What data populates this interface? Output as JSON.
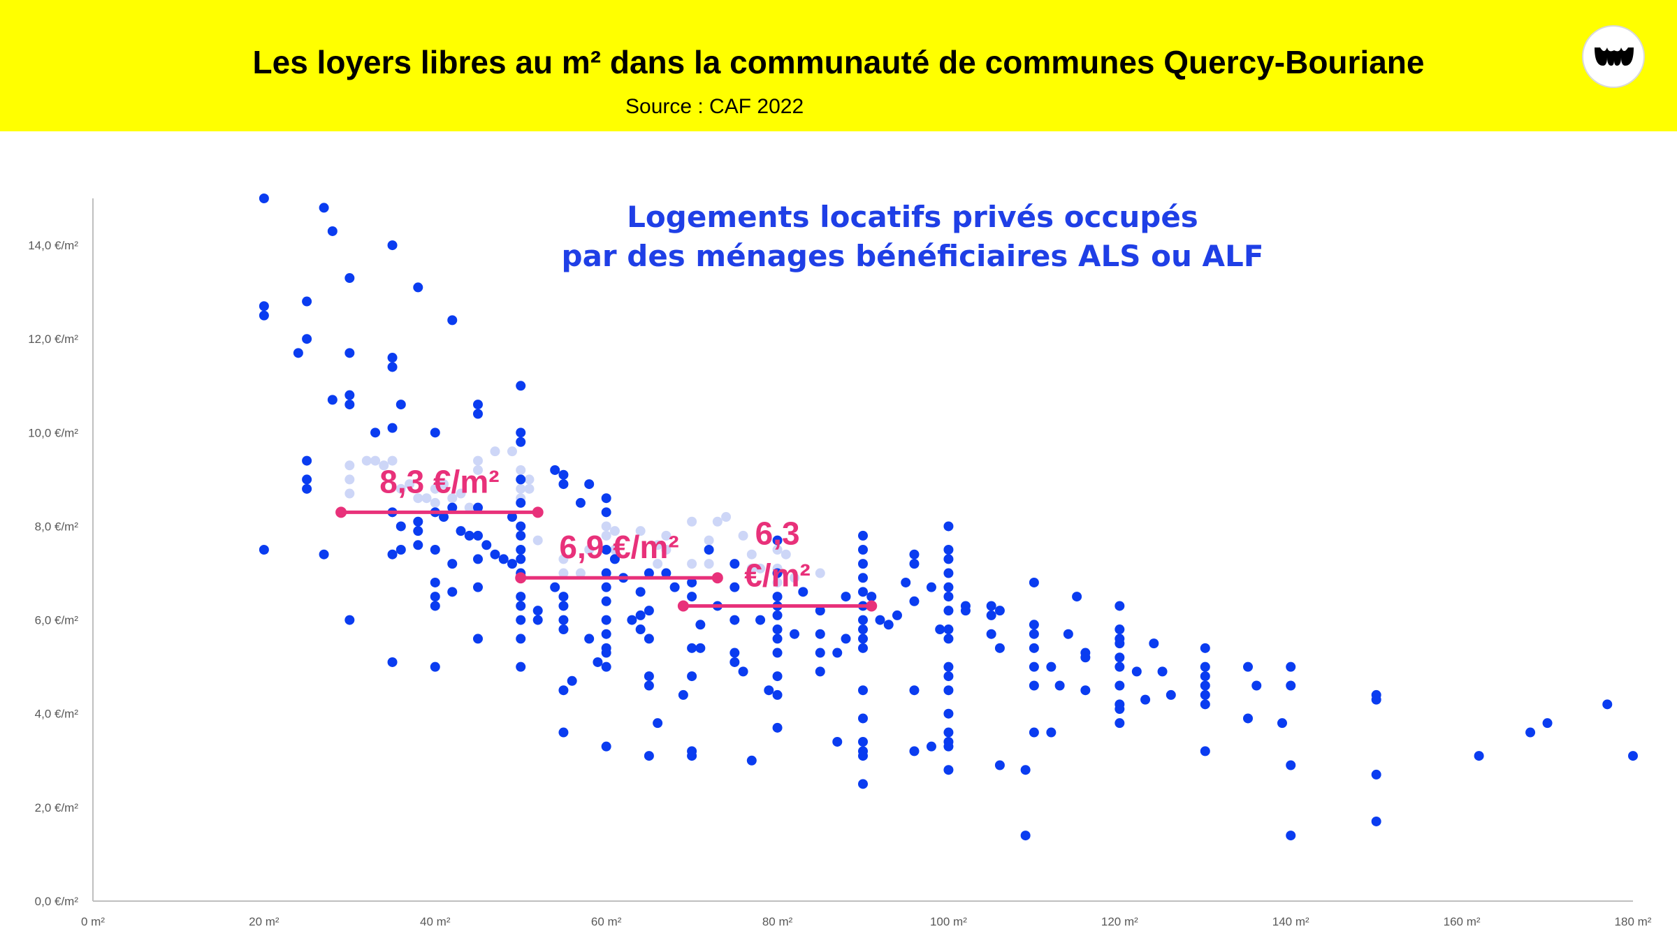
{
  "header": {
    "title": "Les loyers libres au m² dans la communauté de communes Quercy-Bouriane",
    "source": "Source : CAF 2022",
    "logo": "brand-logo-icon"
  },
  "colors": {
    "header_bg": "#ffff00",
    "points": "#0a3cf0",
    "faded_points": "#cdd6f7",
    "subtitle": "#1f3fe6",
    "annotation": "#e8317a"
  },
  "chart_data": {
    "type": "scatter",
    "subtitle_lines": [
      "Logements locatifs privés occupés",
      "par des ménages bénéficiaires ALS ou ALF"
    ],
    "xlim": [
      0,
      180
    ],
    "ylim": [
      0,
      15
    ],
    "x_ticks": [
      0,
      20,
      40,
      60,
      80,
      100,
      120,
      140,
      160,
      180
    ],
    "x_tick_labels": [
      "0 m²",
      "20 m²",
      "40 m²",
      "60 m²",
      "80 m²",
      "100 m²",
      "120 m²",
      "140 m²",
      "160 m²",
      "180 m²"
    ],
    "y_ticks": [
      0,
      2,
      4,
      6,
      8,
      10,
      12,
      14
    ],
    "y_tick_labels": [
      "0,0 €/m²",
      "2,0 €/m²",
      "4,0 €/m²",
      "6,0 €/m²",
      "8,0 €/m²",
      "10,0 €/m²",
      "12,0 €/m²",
      "14,0 €/m²"
    ],
    "grid": false,
    "points": [
      [
        20,
        15
      ],
      [
        20,
        12.7
      ],
      [
        20,
        12.5
      ],
      [
        20,
        7.5
      ],
      [
        24,
        11.7
      ],
      [
        25,
        12.8
      ],
      [
        25,
        12
      ],
      [
        25,
        9.4
      ],
      [
        25,
        9
      ],
      [
        25,
        8.8
      ],
      [
        27,
        14.8
      ],
      [
        27,
        7.4
      ],
      [
        28,
        14.3
      ],
      [
        28,
        10.7
      ],
      [
        30,
        13.3
      ],
      [
        30,
        11.7
      ],
      [
        30,
        10.8
      ],
      [
        30,
        10.6
      ],
      [
        30,
        6
      ],
      [
        33,
        10
      ],
      [
        35,
        14
      ],
      [
        35,
        11.6
      ],
      [
        35,
        11.4
      ],
      [
        35,
        10.1
      ],
      [
        35,
        8.3
      ],
      [
        35,
        7.4
      ],
      [
        35,
        5.1
      ],
      [
        36,
        10.6
      ],
      [
        36,
        8
      ],
      [
        36,
        7.5
      ],
      [
        38,
        13.1
      ],
      [
        38,
        8.1
      ],
      [
        38,
        7.9
      ],
      [
        38,
        7.6
      ],
      [
        40,
        10
      ],
      [
        40,
        8.3
      ],
      [
        40,
        7.5
      ],
      [
        40,
        6.8
      ],
      [
        40,
        6.5
      ],
      [
        40,
        6.3
      ],
      [
        40,
        5
      ],
      [
        41,
        8.2
      ],
      [
        42,
        12.4
      ],
      [
        42,
        8.4
      ],
      [
        42,
        6.6
      ],
      [
        42,
        7.2
      ],
      [
        43,
        7.9
      ],
      [
        44,
        7.8
      ],
      [
        45,
        10.6
      ],
      [
        45,
        10.4
      ],
      [
        45,
        8.4
      ],
      [
        45,
        7.8
      ],
      [
        45,
        7.3
      ],
      [
        45,
        6.7
      ],
      [
        45,
        5.6
      ],
      [
        46,
        7.6
      ],
      [
        47,
        7.4
      ],
      [
        48,
        7.3
      ],
      [
        49,
        7.2
      ],
      [
        49,
        8.2
      ],
      [
        50,
        11
      ],
      [
        50,
        10
      ],
      [
        50,
        9.8
      ],
      [
        50,
        9
      ],
      [
        50,
        8.5
      ],
      [
        50,
        8
      ],
      [
        50,
        7.8
      ],
      [
        50,
        7.5
      ],
      [
        50,
        7.3
      ],
      [
        50,
        7
      ],
      [
        50,
        6.5
      ],
      [
        50,
        6.3
      ],
      [
        50,
        6
      ],
      [
        50,
        5.6
      ],
      [
        50,
        5
      ],
      [
        52,
        6.2
      ],
      [
        52,
        6
      ],
      [
        54,
        9.2
      ],
      [
        54,
        6.7
      ],
      [
        55,
        9.1
      ],
      [
        55,
        8.9
      ],
      [
        55,
        6.5
      ],
      [
        55,
        6.3
      ],
      [
        55,
        6
      ],
      [
        55,
        5.8
      ],
      [
        55,
        4.5
      ],
      [
        55,
        3.6
      ],
      [
        56,
        4.7
      ],
      [
        57,
        8.5
      ],
      [
        58,
        8.9
      ],
      [
        58,
        5.6
      ],
      [
        59,
        5.1
      ],
      [
        60,
        8.6
      ],
      [
        60,
        8.3
      ],
      [
        60,
        7.5
      ],
      [
        60,
        7
      ],
      [
        60,
        6.7
      ],
      [
        60,
        6.4
      ],
      [
        60,
        6
      ],
      [
        60,
        5.7
      ],
      [
        60,
        5.4
      ],
      [
        60,
        5.3
      ],
      [
        60,
        5
      ],
      [
        60,
        3.3
      ],
      [
        61,
        7.3
      ],
      [
        62,
        6.9
      ],
      [
        63,
        6
      ],
      [
        64,
        6.6
      ],
      [
        64,
        5.8
      ],
      [
        64,
        6.1
      ],
      [
        65,
        7
      ],
      [
        65,
        6.2
      ],
      [
        65,
        5.6
      ],
      [
        65,
        4.8
      ],
      [
        65,
        4.6
      ],
      [
        65,
        3.1
      ],
      [
        66,
        3.8
      ],
      [
        67,
        7
      ],
      [
        68,
        6.7
      ],
      [
        69,
        4.4
      ],
      [
        70,
        6.8
      ],
      [
        70,
        6.5
      ],
      [
        70,
        5.4
      ],
      [
        70,
        4.8
      ],
      [
        70,
        3.2
      ],
      [
        70,
        3.1
      ],
      [
        71,
        5.9
      ],
      [
        71,
        5.4
      ],
      [
        72,
        7.5
      ],
      [
        73,
        6.3
      ],
      [
        75,
        7.2
      ],
      [
        75,
        6.7
      ],
      [
        75,
        6
      ],
      [
        75,
        5.3
      ],
      [
        75,
        5.1
      ],
      [
        76,
        4.9
      ],
      [
        77,
        3
      ],
      [
        78,
        6
      ],
      [
        79,
        4.5
      ],
      [
        80,
        7.7
      ],
      [
        80,
        7
      ],
      [
        80,
        6.5
      ],
      [
        80,
        6.3
      ],
      [
        80,
        6.1
      ],
      [
        80,
        5.8
      ],
      [
        80,
        5.6
      ],
      [
        80,
        5.3
      ],
      [
        80,
        4.8
      ],
      [
        80,
        4.4
      ],
      [
        80,
        3.7
      ],
      [
        82,
        5.7
      ],
      [
        83,
        6.6
      ],
      [
        85,
        6.2
      ],
      [
        85,
        5.7
      ],
      [
        85,
        5.3
      ],
      [
        85,
        4.9
      ],
      [
        87,
        5.3
      ],
      [
        87,
        3.4
      ],
      [
        88,
        5.6
      ],
      [
        88,
        6.5
      ],
      [
        90,
        7.8
      ],
      [
        90,
        7.5
      ],
      [
        90,
        7.2
      ],
      [
        90,
        6.9
      ],
      [
        90,
        6.6
      ],
      [
        90,
        6.3
      ],
      [
        90,
        6
      ],
      [
        90,
        5.8
      ],
      [
        90,
        5.6
      ],
      [
        90,
        5.4
      ],
      [
        90,
        4.5
      ],
      [
        90,
        3.9
      ],
      [
        90,
        3.4
      ],
      [
        90,
        3.2
      ],
      [
        90,
        3.1
      ],
      [
        90,
        2.5
      ],
      [
        91,
        6.5
      ],
      [
        92,
        6
      ],
      [
        93,
        5.9
      ],
      [
        94,
        6.1
      ],
      [
        95,
        6.8
      ],
      [
        96,
        7.4
      ],
      [
        96,
        7.2
      ],
      [
        96,
        6.4
      ],
      [
        96,
        4.5
      ],
      [
        96,
        3.2
      ],
      [
        98,
        6.7
      ],
      [
        98,
        3.3
      ],
      [
        99,
        5.8
      ],
      [
        100,
        8
      ],
      [
        100,
        7.5
      ],
      [
        100,
        7.3
      ],
      [
        100,
        7
      ],
      [
        100,
        6.7
      ],
      [
        100,
        6.5
      ],
      [
        100,
        6.2
      ],
      [
        100,
        5.8
      ],
      [
        100,
        5.6
      ],
      [
        100,
        5
      ],
      [
        100,
        4.8
      ],
      [
        100,
        4.5
      ],
      [
        100,
        4
      ],
      [
        100,
        3.6
      ],
      [
        100,
        3.4
      ],
      [
        100,
        3.3
      ],
      [
        100,
        2.8
      ],
      [
        102,
        6.3
      ],
      [
        102,
        6.2
      ],
      [
        105,
        6.3
      ],
      [
        105,
        6.1
      ],
      [
        105,
        5.7
      ],
      [
        106,
        6.2
      ],
      [
        106,
        5.4
      ],
      [
        106,
        2.9
      ],
      [
        109,
        2.8
      ],
      [
        109,
        1.4
      ],
      [
        110,
        6.8
      ],
      [
        110,
        5.9
      ],
      [
        110,
        5.7
      ],
      [
        110,
        5.4
      ],
      [
        110,
        5
      ],
      [
        110,
        4.6
      ],
      [
        110,
        3.6
      ],
      [
        112,
        5
      ],
      [
        112,
        3.6
      ],
      [
        113,
        4.6
      ],
      [
        114,
        5.7
      ],
      [
        115,
        6.5
      ],
      [
        116,
        5.3
      ],
      [
        116,
        5.2
      ],
      [
        116,
        4.5
      ],
      [
        120,
        6.3
      ],
      [
        120,
        5.8
      ],
      [
        120,
        5.6
      ],
      [
        120,
        5.5
      ],
      [
        120,
        5.2
      ],
      [
        120,
        5
      ],
      [
        120,
        4.6
      ],
      [
        120,
        4.2
      ],
      [
        120,
        4.1
      ],
      [
        120,
        3.8
      ],
      [
        122,
        4.9
      ],
      [
        123,
        4.3
      ],
      [
        124,
        5.5
      ],
      [
        125,
        4.9
      ],
      [
        126,
        4.4
      ],
      [
        130,
        5.4
      ],
      [
        130,
        5
      ],
      [
        130,
        4.8
      ],
      [
        130,
        4.6
      ],
      [
        130,
        4.4
      ],
      [
        130,
        4.2
      ],
      [
        130,
        3.2
      ],
      [
        135,
        5
      ],
      [
        135,
        3.9
      ],
      [
        136,
        4.6
      ],
      [
        139,
        3.8
      ],
      [
        140,
        5
      ],
      [
        140,
        4.6
      ],
      [
        140,
        2.9
      ],
      [
        140,
        1.4
      ],
      [
        150,
        4.4
      ],
      [
        150,
        4.3
      ],
      [
        150,
        2.7
      ],
      [
        150,
        1.7
      ],
      [
        162,
        3.1
      ],
      [
        168,
        3.6
      ],
      [
        170,
        3.8
      ],
      [
        177,
        4.2
      ],
      [
        180,
        3.1
      ]
    ],
    "faded_points": [
      [
        30,
        9.3
      ],
      [
        30,
        9
      ],
      [
        30,
        8.7
      ],
      [
        32,
        9.4
      ],
      [
        33,
        9.4
      ],
      [
        34,
        9.3
      ],
      [
        35,
        9.4
      ],
      [
        36,
        8.8
      ],
      [
        37,
        8.9
      ],
      [
        38,
        8.6
      ],
      [
        39,
        8.6
      ],
      [
        40,
        8.5
      ],
      [
        40,
        8.8
      ],
      [
        41,
        8.9
      ],
      [
        42,
        8.6
      ],
      [
        43,
        8.7
      ],
      [
        44,
        8.4
      ],
      [
        45,
        9.4
      ],
      [
        45,
        9.2
      ],
      [
        47,
        9.6
      ],
      [
        49,
        9.6
      ],
      [
        50,
        9.2
      ],
      [
        50,
        8.8
      ],
      [
        50,
        8.6
      ],
      [
        51,
        9
      ],
      [
        51,
        8.8
      ],
      [
        52,
        7.7
      ],
      [
        55,
        7.3
      ],
      [
        55,
        7
      ],
      [
        57,
        7
      ],
      [
        58,
        7.5
      ],
      [
        60,
        8
      ],
      [
        60,
        7.8
      ],
      [
        61,
        7.9
      ],
      [
        61,
        7.5
      ],
      [
        64,
        7.9
      ],
      [
        66,
        7.2
      ],
      [
        66,
        7.6
      ],
      [
        67,
        7.5
      ],
      [
        67,
        7.8
      ],
      [
        70,
        8.1
      ],
      [
        70,
        7.2
      ],
      [
        72,
        7.7
      ],
      [
        72,
        7.2
      ],
      [
        73,
        8.1
      ],
      [
        74,
        8.2
      ],
      [
        76,
        7.8
      ],
      [
        77,
        7.4
      ],
      [
        77,
        7.1
      ],
      [
        78,
        7.1
      ],
      [
        80,
        7.5
      ],
      [
        80,
        7.1
      ],
      [
        80,
        6.8
      ],
      [
        81,
        7.4
      ],
      [
        82,
        6.9
      ],
      [
        85,
        7
      ]
    ],
    "annotations": [
      {
        "label_lines": [
          "8,3 €/m²"
        ],
        "value": 8.3,
        "x_start": 29,
        "x_end": 52
      },
      {
        "label_lines": [
          "6,9 €/m²"
        ],
        "value": 6.9,
        "x_start": 50,
        "x_end": 73
      },
      {
        "label_lines": [
          "6,3",
          "€/m²"
        ],
        "value": 6.3,
        "x_start": 69,
        "x_end": 91
      }
    ]
  }
}
